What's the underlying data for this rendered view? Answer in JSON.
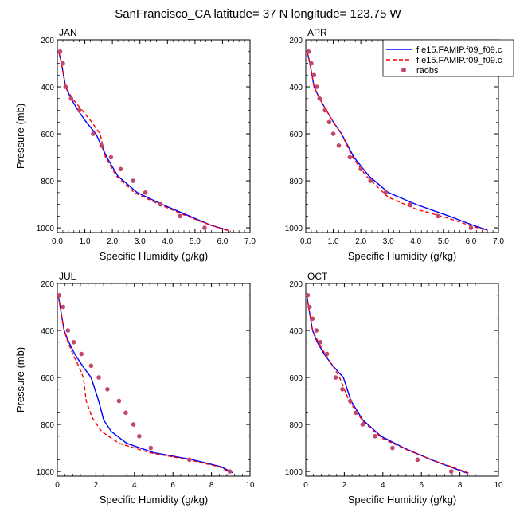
{
  "figure": {
    "title": "SanFrancisco_CA  latitude= 37 N longitude= 123.75 W"
  },
  "legend": {
    "entries": [
      {
        "label": "f.e15.FAMIP.f09_f09.c",
        "color": "#0000ff",
        "style": "solid"
      },
      {
        "label": "f.e15.FAMIP.f09_f09.c",
        "color": "#ff0000",
        "style": "dashed"
      },
      {
        "label": "raobs",
        "color": "#c0486a",
        "style": "marker"
      }
    ]
  },
  "chart_data": [
    {
      "type": "line",
      "panel": "JAN",
      "xlabel": "Specific Humidity (g/kg)",
      "ylabel": "Pressure (mb)",
      "xlim": [
        0,
        7
      ],
      "ylim": [
        1020,
        200
      ],
      "y_inverted": true,
      "xticks": [
        "0.0",
        "1.0",
        "2.0",
        "3.0",
        "4.0",
        "5.0",
        "6.0",
        "7.0"
      ],
      "yticks": [
        "200",
        "400",
        "600",
        "800",
        "1000"
      ],
      "series": [
        {
          "name": "f.e15.FAMIP.f09_f09.c",
          "color": "#0000ff",
          "dash": "solid",
          "x": [
            0.05,
            0.15,
            0.3,
            0.5,
            0.75,
            1.05,
            1.4,
            1.8,
            2.2,
            2.9,
            3.8,
            4.8,
            5.6,
            6.2
          ],
          "y": [
            250,
            300,
            400,
            450,
            500,
            550,
            600,
            700,
            780,
            850,
            900,
            950,
            990,
            1010
          ]
        },
        {
          "name": "f.e15.FAMIP.f09_f09.c",
          "color": "#ff0000",
          "dash": "dashed",
          "x": [
            0.05,
            0.15,
            0.3,
            0.55,
            0.9,
            1.25,
            1.55,
            1.75,
            2.15,
            2.8,
            3.7,
            4.7,
            5.6,
            6.3
          ],
          "y": [
            250,
            300,
            400,
            450,
            500,
            550,
            600,
            700,
            780,
            850,
            900,
            950,
            990,
            1015
          ]
        },
        {
          "name": "raobs",
          "color": "#c0486a",
          "dash": "markers",
          "x": [
            0.1,
            0.2,
            0.3,
            0.5,
            0.8,
            1.3,
            1.6,
            1.95,
            2.3,
            2.75,
            3.2,
            3.75,
            4.45,
            5.35
          ],
          "y": [
            250,
            300,
            400,
            450,
            500,
            600,
            650,
            700,
            750,
            800,
            850,
            900,
            950,
            1000
          ]
        }
      ]
    },
    {
      "type": "line",
      "panel": "APR",
      "xlabel": "Specific Humidity (g/kg)",
      "ylabel": "",
      "xlim": [
        0,
        7
      ],
      "ylim": [
        1020,
        200
      ],
      "y_inverted": true,
      "xticks": [
        "0.0",
        "1.0",
        "2.0",
        "3.0",
        "4.0",
        "5.0",
        "6.0",
        "7.0"
      ],
      "yticks": [
        "200",
        "400",
        "600",
        "800",
        "1000"
      ],
      "series": [
        {
          "name": "f.e15.FAMIP.f09_f09.c",
          "color": "#0000ff",
          "dash": "solid",
          "x": [
            0.05,
            0.15,
            0.3,
            0.5,
            0.75,
            1.0,
            1.3,
            1.75,
            2.3,
            3.0,
            4.0,
            5.2,
            6.1,
            6.6
          ],
          "y": [
            250,
            300,
            400,
            450,
            500,
            550,
            600,
            700,
            780,
            850,
            900,
            950,
            990,
            1010
          ]
        },
        {
          "name": "f.e15.FAMIP.f09_f09.c",
          "color": "#ff0000",
          "dash": "dashed",
          "x": [
            0.05,
            0.15,
            0.3,
            0.5,
            0.75,
            1.0,
            1.3,
            1.7,
            2.2,
            3.0,
            4.0,
            5.2,
            6.1,
            6.6
          ],
          "y": [
            250,
            300,
            400,
            450,
            500,
            550,
            600,
            700,
            780,
            870,
            920,
            960,
            995,
            1012
          ]
        },
        {
          "name": "raobs",
          "color": "#c0486a",
          "dash": "markers",
          "x": [
            0.1,
            0.2,
            0.3,
            0.4,
            0.5,
            0.7,
            0.85,
            1.0,
            1.2,
            1.6,
            2.0,
            2.35,
            2.9,
            3.8,
            4.8,
            6.0
          ],
          "y": [
            250,
            300,
            350,
            400,
            450,
            500,
            550,
            600,
            650,
            700,
            750,
            800,
            850,
            900,
            950,
            1000
          ]
        }
      ]
    },
    {
      "type": "line",
      "panel": "JUL",
      "xlabel": "Specific Humidity (g/kg)",
      "ylabel": "Pressure (mb)",
      "xlim": [
        0,
        10
      ],
      "ylim": [
        1020,
        200
      ],
      "y_inverted": true,
      "xticks": [
        "0",
        "2",
        "4",
        "6",
        "8",
        "10"
      ],
      "yticks": [
        "200",
        "400",
        "600",
        "800",
        "1000"
      ],
      "series": [
        {
          "name": "f.e15.FAMIP.f09_f09.c",
          "color": "#0000ff",
          "dash": "solid",
          "x": [
            0.05,
            0.15,
            0.35,
            0.6,
            0.9,
            1.3,
            1.75,
            2.15,
            2.4,
            2.8,
            3.6,
            5.0,
            7.0,
            8.5,
            9.1
          ],
          "y": [
            250,
            300,
            400,
            450,
            500,
            550,
            600,
            700,
            780,
            830,
            880,
            920,
            950,
            980,
            1005
          ]
        },
        {
          "name": "f.e15.FAMIP.f09_f09.c",
          "color": "#ff0000",
          "dash": "dashed",
          "x": [
            0.05,
            0.15,
            0.35,
            0.55,
            0.8,
            1.1,
            1.35,
            1.5,
            1.8,
            2.3,
            3.2,
            4.8,
            6.8,
            8.4,
            9.0
          ],
          "y": [
            250,
            300,
            400,
            450,
            500,
            550,
            600,
            700,
            770,
            830,
            880,
            920,
            950,
            980,
            1005
          ]
        },
        {
          "name": "raobs",
          "color": "#c0486a",
          "dash": "markers",
          "x": [
            0.1,
            0.3,
            0.55,
            0.85,
            1.25,
            1.75,
            2.15,
            2.6,
            3.2,
            3.55,
            3.95,
            4.25,
            4.85,
            6.85,
            8.95
          ],
          "y": [
            250,
            300,
            400,
            450,
            500,
            550,
            600,
            650,
            700,
            750,
            800,
            850,
            900,
            950,
            1000
          ]
        }
      ]
    },
    {
      "type": "line",
      "panel": "OCT",
      "xlabel": "Specific Humidity (g/kg)",
      "ylabel": "",
      "xlim": [
        0,
        10
      ],
      "ylim": [
        1020,
        200
      ],
      "y_inverted": true,
      "xticks": [
        "0",
        "2",
        "4",
        "6",
        "8",
        "10"
      ],
      "yticks": [
        "200",
        "400",
        "600",
        "800",
        "1000"
      ],
      "series": [
        {
          "name": "f.e15.FAMIP.f09_f09.c",
          "color": "#0000ff",
          "dash": "solid",
          "x": [
            0.05,
            0.15,
            0.35,
            0.6,
            0.95,
            1.4,
            1.95,
            2.35,
            2.95,
            3.9,
            5.1,
            6.5,
            7.8,
            8.4
          ],
          "y": [
            250,
            300,
            400,
            450,
            500,
            550,
            600,
            700,
            780,
            850,
            900,
            950,
            990,
            1008
          ]
        },
        {
          "name": "f.e15.FAMIP.f09_f09.c",
          "color": "#ff0000",
          "dash": "dashed",
          "x": [
            0.05,
            0.15,
            0.35,
            0.65,
            1.0,
            1.4,
            1.75,
            2.25,
            3.0,
            4.0,
            5.3,
            6.7,
            7.9,
            8.5
          ],
          "y": [
            250,
            300,
            400,
            450,
            500,
            550,
            600,
            700,
            790,
            860,
            910,
            955,
            990,
            1008
          ]
        },
        {
          "name": "raobs",
          "color": "#c0486a",
          "dash": "markers",
          "x": [
            0.1,
            0.2,
            0.35,
            0.55,
            0.75,
            1.1,
            1.55,
            1.9,
            2.3,
            2.6,
            2.95,
            3.6,
            4.5,
            5.8,
            7.55
          ],
          "y": [
            250,
            300,
            350,
            400,
            450,
            500,
            600,
            650,
            700,
            750,
            800,
            850,
            900,
            950,
            1000
          ]
        }
      ]
    }
  ]
}
